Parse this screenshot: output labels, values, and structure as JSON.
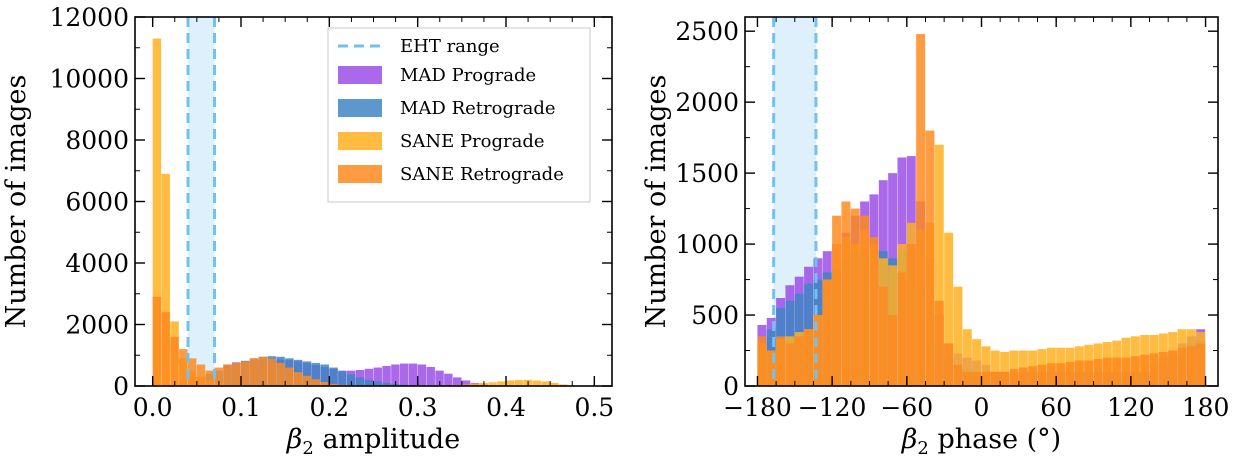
{
  "chart_data": [
    {
      "type": "histogram",
      "xlabel_symbol": "β",
      "xlabel_subscript": "2",
      "xlabel_suffix": " amplitude",
      "ylabel": "Number of images",
      "xlim": [
        -0.02,
        0.52
      ],
      "ylim": [
        0,
        12000
      ],
      "xticks": [
        0.0,
        0.1,
        0.2,
        0.3,
        0.4,
        0.5
      ],
      "xtick_labels": [
        "0.0",
        "0.1",
        "0.2",
        "0.3",
        "0.4",
        "0.5"
      ],
      "yticks": [
        0,
        2000,
        4000,
        6000,
        8000,
        10000,
        12000
      ],
      "ytick_labels": [
        "0",
        "2000",
        "4000",
        "6000",
        "8000",
        "10000",
        "12000"
      ],
      "eht_range": [
        0.04,
        0.07
      ],
      "bin_start": 0.0,
      "bin_width": 0.01,
      "legend_position": "top-right",
      "series": [
        {
          "name": "MAD Prograde",
          "color": "#9b4de6",
          "values": [
            0,
            0,
            0,
            0,
            0,
            0,
            0,
            0,
            700,
            770,
            800,
            830,
            850,
            870,
            860,
            840,
            800,
            740,
            680,
            620,
            560,
            500,
            500,
            520,
            560,
            600,
            650,
            700,
            730,
            730,
            700,
            620,
            500,
            400,
            280,
            180,
            100,
            50,
            20,
            0,
            0,
            0,
            0,
            0,
            0,
            0,
            0,
            0
          ]
        },
        {
          "name": "MAD Retrograde",
          "color": "#3f86c4",
          "values": [
            0,
            0,
            0,
            200,
            300,
            300,
            400,
            500,
            650,
            750,
            820,
            900,
            950,
            970,
            950,
            900,
            850,
            800,
            750,
            700,
            600,
            480,
            380,
            280,
            200,
            150,
            100,
            60,
            40,
            20,
            10,
            0,
            0,
            0,
            0,
            0,
            0,
            0,
            0,
            0,
            0,
            0,
            0,
            0,
            0,
            0,
            0,
            0
          ]
        },
        {
          "name": "SANE Prograde",
          "color": "#ffb020",
          "values": [
            11300,
            6900,
            2100,
            900,
            500,
            300,
            200,
            100,
            50,
            30,
            20,
            20,
            20,
            20,
            20,
            20,
            20,
            20,
            20,
            20,
            20,
            20,
            20,
            20,
            20,
            20,
            20,
            20,
            20,
            20,
            20,
            20,
            20,
            20,
            30,
            50,
            80,
            100,
            120,
            150,
            180,
            190,
            200,
            180,
            150,
            100,
            50,
            20
          ]
        },
        {
          "name": "SANE Retrograde",
          "color": "#ff8a1e",
          "values": [
            2900,
            2400,
            1600,
            1200,
            900,
            700,
            500,
            600,
            700,
            750,
            800,
            900,
            950,
            880,
            750,
            600,
            450,
            330,
            220,
            130,
            70,
            40,
            20,
            10,
            0,
            0,
            0,
            0,
            0,
            0,
            0,
            0,
            0,
            0,
            0,
            0,
            0,
            0,
            0,
            0,
            0,
            0,
            0,
            0,
            0,
            0,
            0,
            0
          ]
        }
      ],
      "legend": {
        "eht_label": "EHT range",
        "entries": [
          "MAD Prograde",
          "MAD Retrograde",
          "SANE Prograde",
          "SANE Retrograde"
        ]
      }
    },
    {
      "type": "histogram",
      "xlabel_symbol": "β",
      "xlabel_subscript": "2",
      "xlabel_suffix": " phase (°)",
      "ylabel": "Number of images",
      "xlim": [
        -190,
        190
      ],
      "ylim": [
        0,
        2600
      ],
      "xticks": [
        -180,
        -120,
        -60,
        0,
        60,
        120,
        180
      ],
      "xtick_labels": [
        "−180",
        "−120",
        "−60",
        "0",
        "60",
        "120",
        "180"
      ],
      "yticks": [
        0,
        500,
        1000,
        1500,
        2000,
        2500
      ],
      "ytick_labels": [
        "0",
        "500",
        "1000",
        "1500",
        "2000",
        "2500"
      ],
      "eht_range": [
        -167,
        -133
      ],
      "bin_start": -180,
      "bin_width": 7.5,
      "series": [
        {
          "name": "MAD Prograde",
          "color": "#9b4de6",
          "values": [
            430,
            480,
            620,
            710,
            770,
            840,
            900,
            950,
            1000,
            1080,
            1200,
            1300,
            1350,
            1450,
            1500,
            1610,
            1620,
            1300,
            900,
            500,
            300,
            230,
            200,
            180,
            150,
            100,
            100,
            100,
            100,
            100,
            100,
            100,
            100,
            100,
            100,
            100,
            100,
            100,
            100,
            100,
            100,
            100,
            150,
            200,
            250,
            300,
            350,
            400
          ]
        },
        {
          "name": "MAD Retrograde",
          "color": "#3f86c4",
          "values": [
            300,
            400,
            550,
            600,
            650,
            720,
            750,
            800,
            850,
            900,
            950,
            980,
            1000,
            950,
            900,
            950,
            1000,
            700,
            500,
            300,
            200,
            150,
            120,
            100,
            100,
            100,
            100,
            100,
            100,
            100,
            100,
            100,
            100,
            100,
            100,
            100,
            100,
            100,
            100,
            100,
            100,
            100,
            120,
            150,
            200,
            250,
            300,
            320
          ]
        },
        {
          "name": "SANE Prograde",
          "color": "#ffb020",
          "values": [
            300,
            250,
            330,
            350,
            380,
            400,
            500,
            750,
            1000,
            1050,
            1000,
            1100,
            1000,
            900,
            850,
            1000,
            1150,
            1100,
            1150,
            1700,
            1080,
            700,
            400,
            330,
            280,
            250,
            240,
            250,
            250,
            250,
            260,
            270,
            270,
            270,
            280,
            290,
            300,
            310,
            320,
            340,
            350,
            360,
            360,
            370,
            380,
            400,
            400,
            380
          ]
        },
        {
          "name": "SANE Retrograde",
          "color": "#ff8a1e",
          "values": [
            350,
            250,
            350,
            300,
            350,
            400,
            500,
            750,
            1200,
            1300,
            1250,
            1200,
            1050,
            700,
            500,
            800,
            1000,
            2480,
            1800,
            600,
            300,
            150,
            100,
            100,
            100,
            100,
            100,
            120,
            130,
            140,
            150,
            160,
            160,
            170,
            180,
            180,
            190,
            200,
            200,
            200,
            210,
            220,
            230,
            240,
            250,
            270,
            280,
            300
          ]
        }
      ]
    }
  ]
}
